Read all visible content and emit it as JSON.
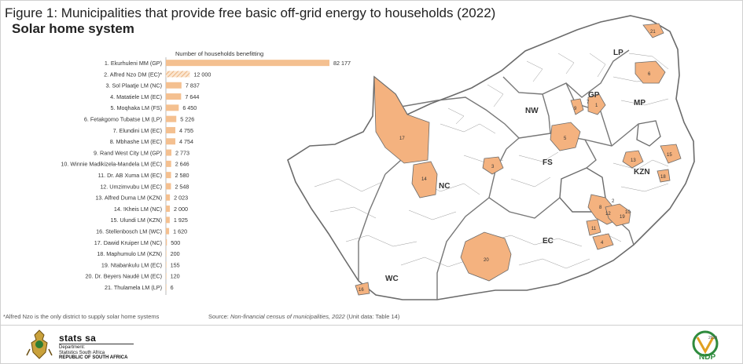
{
  "title": "Figure 1: Municipalities that provide free basic off-grid energy to households (2022)",
  "subtitle": "Solar home system",
  "footnote": "*Alfred Nzo is the only district to supply solar home systems",
  "source_prefix": "Source: ",
  "source_italic": "Non-financial census of municipalities, 2022",
  "source_suffix": " (Unit data: Table 14)",
  "branding": {
    "stats_name": "stats sa",
    "stats_dept_1": "Department:",
    "stats_dept_2": "Statistics South Africa",
    "stats_country": "REPUBLIC OF SOUTH AFRICA",
    "ndp_label": "NDP",
    "ndp_year": "2030"
  },
  "colors": {
    "bar": "#F4C090",
    "hatch_bg": "#FBE6D0",
    "map_highlight": "#F4B27F",
    "map_border": "#6b6b6b",
    "map_fill": "#ffffff"
  },
  "chart_data": {
    "type": "bar",
    "orientation": "horizontal",
    "title": "Figure 1: Municipalities that provide free basic off-grid energy to households (2022)",
    "subtitle": "Solar home system",
    "xlabel": "Number of households benefitting",
    "categories": [
      "1. Ekurhuleni MM (GP)",
      "2. Alfred Nzo DM (EC)*",
      "3. Sol Plaatje LM (NC)",
      "4. Matatiele LM (EC)",
      "5. Moqhaka LM (FS)",
      "6. Fetakgomo Tubatse LM (LP)",
      "7. Elundini LM (EC)",
      "8. Mbhashe LM (EC)",
      "9. Rand West City LM (GP)",
      "10. Winnie Madikizela-Mandela LM (EC)",
      "11. Dr. AB Xuma LM (EC)",
      "12. Umzimvubu LM (EC)",
      "13. Alfred Duma LM (KZN)",
      "14. !Kheis LM (NC)",
      "15. Ulundi LM (KZN)",
      "16. Stellenbosch LM (WC)",
      "17. Dawid Kruiper LM (NC)",
      "18. Maphumulo LM (KZN)",
      "19. Ntabankulu LM (EC)",
      "20. Dr. Beyers Naudé LM (EC)",
      "21. Thulamela LM (LP)"
    ],
    "values": [
      82177,
      12000,
      7837,
      7644,
      6450,
      5226,
      4755,
      4754,
      2773,
      2646,
      2580,
      2548,
      2023,
      2000,
      1925,
      1620,
      500,
      200,
      155,
      120,
      6
    ],
    "value_labels": [
      "82 177",
      "12 000",
      "7 837",
      "7 644",
      "6 450",
      "5 226",
      "4 755",
      "4 754",
      "2 773",
      "2 646",
      "2 580",
      "2 548",
      "2 023",
      "2 000",
      "1 925",
      "1 620",
      "500",
      "200",
      "155",
      "120",
      "6"
    ],
    "hatched_category": "2. Alfred Nzo DM (EC)*",
    "xlim": [
      0,
      82177
    ],
    "grid": false,
    "legend": "none"
  },
  "map": {
    "province_labels": [
      "LP",
      "GP",
      "MP",
      "NW",
      "FS",
      "KZN",
      "NC",
      "EC",
      "WC"
    ],
    "region_numbers": [
      "1",
      "2",
      "3",
      "4",
      "5",
      "6",
      "7",
      "8",
      "9",
      "10",
      "11",
      "12",
      "13",
      "14",
      "15",
      "16",
      "17",
      "18",
      "19",
      "20",
      "21"
    ]
  }
}
